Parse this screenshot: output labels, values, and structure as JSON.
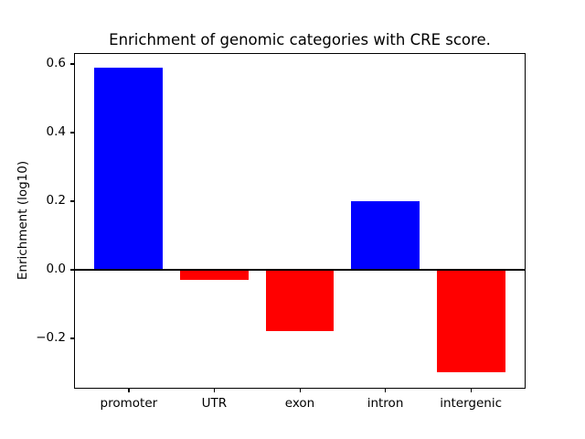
{
  "chart_data": {
    "type": "bar",
    "title": "Enrichment of genomic categories with CRE score.",
    "ylabel": "Enrichment (log10)",
    "xlabel": "",
    "categories": [
      "promoter",
      "UTR",
      "exon",
      "intron",
      "intergenic"
    ],
    "values": [
      0.59,
      -0.03,
      -0.18,
      0.2,
      -0.3
    ],
    "bar_colors": [
      "#0000ff",
      "#ff0000",
      "#ff0000",
      "#0000ff",
      "#ff0000"
    ],
    "positive_color": "#0000ff",
    "negative_color": "#ff0000",
    "yticks": [
      -0.2,
      0.0,
      0.2,
      0.4,
      0.6
    ],
    "ytick_labels": [
      "−0.2",
      "0.0",
      "0.2",
      "0.4",
      "0.6"
    ],
    "ylim": [
      -0.347,
      0.632
    ],
    "xlim": [
      -0.64,
      4.64
    ],
    "bar_width": 0.8,
    "zero_line": true,
    "grid": false,
    "legend": null,
    "background_color": "#ffffff",
    "frame_color": "#000000"
  }
}
